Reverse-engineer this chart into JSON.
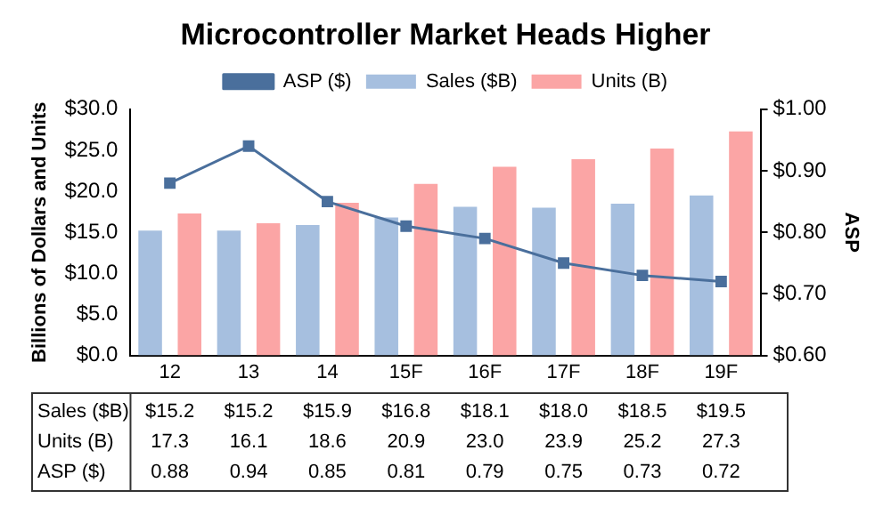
{
  "chart_data": {
    "type": "bar",
    "title": "Microcontroller Market Heads Higher",
    "ylabel": "Billions of Dollars and Units",
    "y2label": "ASP",
    "categories": [
      "12",
      "13",
      "14",
      "15F",
      "16F",
      "17F",
      "18F",
      "19F"
    ],
    "series": [
      {
        "name": "Sales ($B)",
        "color": "#a6bfdf",
        "values": [
          15.2,
          15.2,
          15.9,
          16.8,
          18.1,
          18.0,
          18.5,
          19.5
        ],
        "value_labels": [
          "$15.2",
          "$15.2",
          "$15.9",
          "$16.8",
          "$18.1",
          "$18.0",
          "$18.5",
          "$19.5"
        ]
      },
      {
        "name": "Units (B)",
        "color": "#fba5a5",
        "values": [
          17.3,
          16.1,
          18.6,
          20.9,
          23.0,
          23.9,
          25.2,
          27.3
        ],
        "value_labels": [
          "17.3",
          "16.1",
          "18.6",
          "20.9",
          "23.0",
          "23.9",
          "25.2",
          "27.3"
        ]
      },
      {
        "name": "ASP ($)",
        "type": "line",
        "axis": "y2",
        "color": "#4a6f9c",
        "marker": "square",
        "values": [
          0.88,
          0.94,
          0.85,
          0.81,
          0.79,
          0.75,
          0.73,
          0.72
        ],
        "value_labels": [
          "0.88",
          "0.94",
          "0.85",
          "0.81",
          "0.79",
          "0.75",
          "0.73",
          "0.72"
        ]
      }
    ],
    "ylim": [
      0,
      30
    ],
    "yticks": [
      {
        "value": 0,
        "label": "$0.0"
      },
      {
        "value": 5,
        "label": "$5.0"
      },
      {
        "value": 10,
        "label": "$10.0"
      },
      {
        "value": 15,
        "label": "$15.0"
      },
      {
        "value": 20,
        "label": "$20.0"
      },
      {
        "value": 25,
        "label": "$25.0"
      },
      {
        "value": 30,
        "label": "$30.0"
      }
    ],
    "y2lim": [
      0.6,
      1.0
    ],
    "y2ticks": [
      {
        "value": 0.6,
        "label": "$0.60"
      },
      {
        "value": 0.7,
        "label": "$0.70"
      },
      {
        "value": 0.8,
        "label": "$0.80"
      },
      {
        "value": 0.9,
        "label": "$0.90"
      },
      {
        "value": 1.0,
        "label": "$1.00"
      }
    ],
    "legend": "top",
    "grid": false
  }
}
